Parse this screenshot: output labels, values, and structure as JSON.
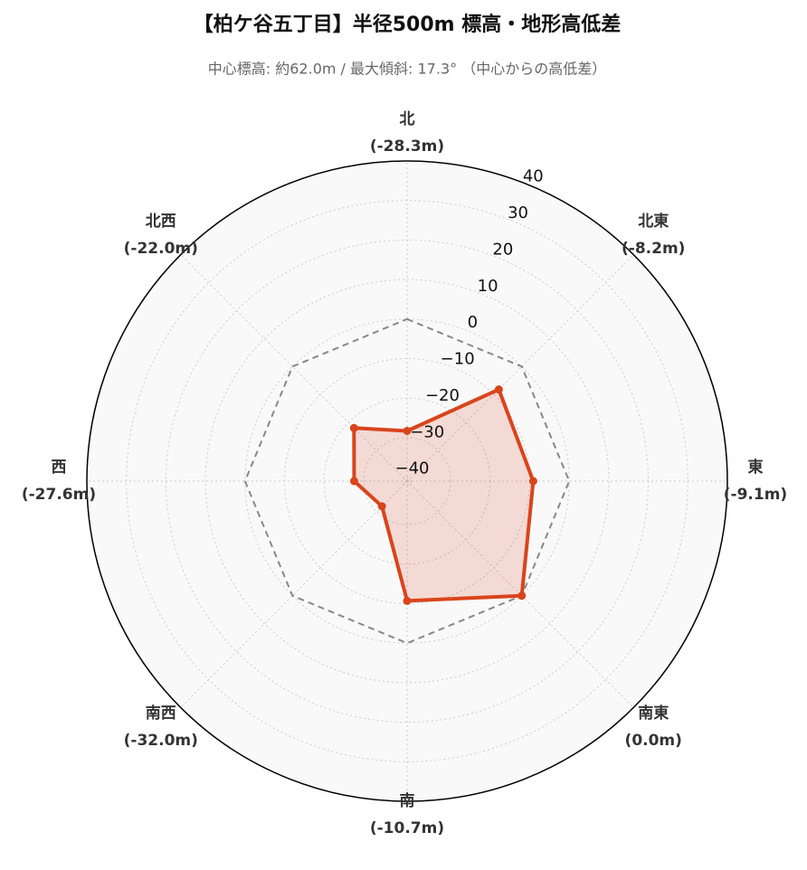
{
  "chart_data": {
    "type": "radar",
    "title": "【柏ケ谷五丁目】半径500m 標高・地形高低差",
    "subtitle": "中心標高: 約62.0m / 最大傾斜: 17.3° （中心からの高低差）",
    "categories": [
      "北",
      "北東",
      "東",
      "南東",
      "南",
      "南西",
      "西",
      "北西"
    ],
    "series": [
      {
        "color": "#d9441c",
        "values": [
          -28.3,
          -8.2,
          -9.1,
          0.0,
          -10.7,
          -32.0,
          -27.6,
          -22.0
        ],
        "value_labels": [
          "(-28.3m)",
          "(-8.2m)",
          "(-9.1m)",
          "(0.0m)",
          "(-10.7m)",
          "(-32.0m)",
          "(-27.6m)",
          "(-22.0m)"
        ]
      }
    ],
    "reference": {
      "value": 0,
      "color": "#888888",
      "dashed": true
    },
    "ylim": [
      -41,
      40
    ],
    "yticks": [
      {
        "value": -40,
        "label": "−40"
      },
      {
        "value": -30,
        "label": "−30"
      },
      {
        "value": -20,
        "label": "−20"
      },
      {
        "value": -10,
        "label": "−10"
      },
      0,
      10,
      20,
      30,
      40
    ],
    "grid": true
  }
}
